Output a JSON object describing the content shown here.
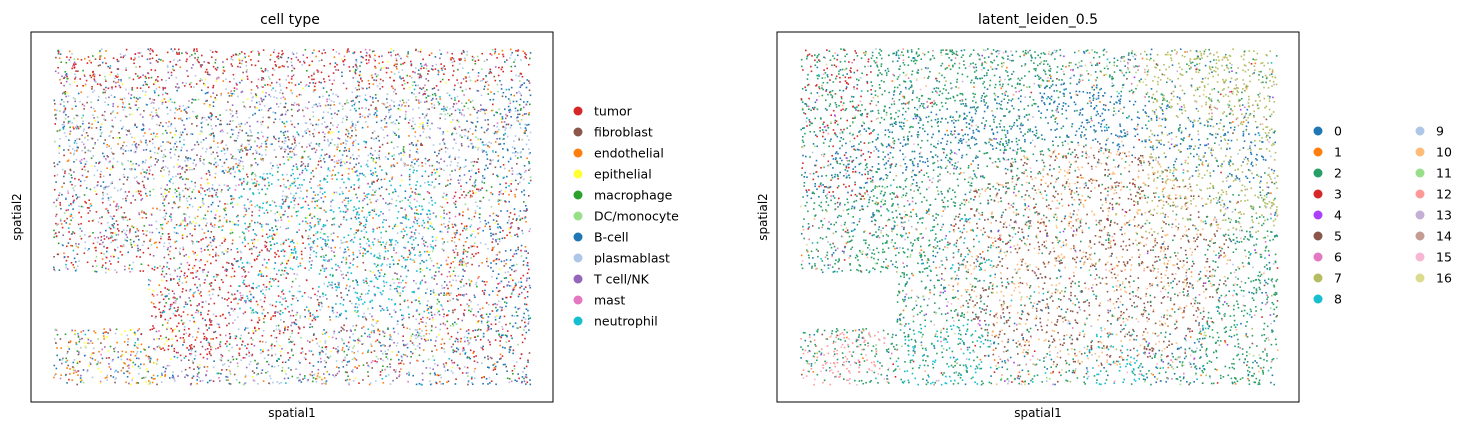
{
  "chart_data": [
    {
      "type": "scatter",
      "title": "cell type",
      "xlabel": "spatial1",
      "ylabel": "spatial2",
      "xticks": false,
      "yticks": false,
      "grid": false,
      "legend_placement": "right",
      "legend_columns": 1,
      "categories": [
        {
          "name": "tumor",
          "color": "#d62728"
        },
        {
          "name": "fibroblast",
          "color": "#8c564b"
        },
        {
          "name": "endothelial",
          "color": "#ff7f0e"
        },
        {
          "name": "epithelial",
          "color": "#ffff33"
        },
        {
          "name": "macrophage",
          "color": "#2ca02c"
        },
        {
          "name": "DC/monocyte",
          "color": "#98df8a"
        },
        {
          "name": "B-cell",
          "color": "#1f77b4"
        },
        {
          "name": "plasmablast",
          "color": "#aec7e8"
        },
        {
          "name": "T cell/NK",
          "color": "#9467bd"
        },
        {
          "name": "mast",
          "color": "#e377c2"
        },
        {
          "name": "neutrophil",
          "color": "#17becf"
        }
      ]
    },
    {
      "type": "scatter",
      "title": "latent_leiden_0.5",
      "xlabel": "spatial1",
      "ylabel": "spatial2",
      "xticks": false,
      "yticks": false,
      "grid": false,
      "legend_placement": "right",
      "legend_columns": 2,
      "categories": [
        {
          "name": "0",
          "color": "#1f77b4"
        },
        {
          "name": "1",
          "color": "#ff7f0e"
        },
        {
          "name": "2",
          "color": "#279e68"
        },
        {
          "name": "3",
          "color": "#d62728"
        },
        {
          "name": "4",
          "color": "#aa40fc"
        },
        {
          "name": "5",
          "color": "#8c564b"
        },
        {
          "name": "6",
          "color": "#e377c2"
        },
        {
          "name": "7",
          "color": "#b5bd61"
        },
        {
          "name": "8",
          "color": "#17becf"
        },
        {
          "name": "9",
          "color": "#aec7e8"
        },
        {
          "name": "10",
          "color": "#ffbb78"
        },
        {
          "name": "11",
          "color": "#98df8a"
        },
        {
          "name": "12",
          "color": "#ff9896"
        },
        {
          "name": "13",
          "color": "#c5b0d5"
        },
        {
          "name": "14",
          "color": "#c49c94"
        },
        {
          "name": "15",
          "color": "#f7b6d2"
        },
        {
          "name": "16",
          "color": "#dbdb8d"
        }
      ]
    }
  ]
}
